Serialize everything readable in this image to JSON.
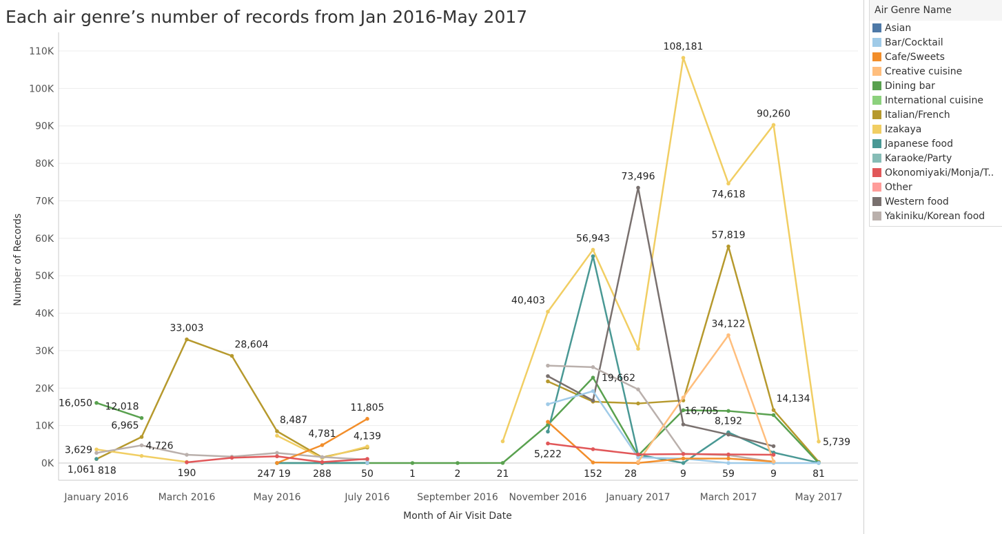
{
  "title": "Each air genre’s number of records from Jan 2016-May 2017",
  "legend": {
    "title": "Air Genre Name",
    "items": [
      {
        "label": "Asian",
        "color": "#4e79a7"
      },
      {
        "label": "Bar/Cocktail",
        "color": "#a0cbe8"
      },
      {
        "label": "Cafe/Sweets",
        "color": "#f28e2b"
      },
      {
        "label": "Creative cuisine",
        "color": "#ffbe7d"
      },
      {
        "label": "Dining bar",
        "color": "#59a14f"
      },
      {
        "label": "International cuisine",
        "color": "#8cd17d"
      },
      {
        "label": "Italian/French",
        "color": "#b6992d"
      },
      {
        "label": "Izakaya",
        "color": "#f1ce63"
      },
      {
        "label": "Japanese food",
        "color": "#499894"
      },
      {
        "label": "Karaoke/Party",
        "color": "#86bcb6"
      },
      {
        "label": "Okonomiyaki/Monja/T..",
        "color": "#e15759"
      },
      {
        "label": "Other",
        "color": "#ff9d9a"
      },
      {
        "label": "Western food",
        "color": "#79706e"
      },
      {
        "label": "Yakiniku/Korean food",
        "color": "#bab0ac"
      }
    ]
  },
  "chart_data": {
    "type": "line",
    "xlabel": "Month of Air Visit Date",
    "ylabel": "Number of Records",
    "ylim": [
      0,
      110000
    ],
    "yticks": [
      "0K",
      "10K",
      "20K",
      "30K",
      "40K",
      "50K",
      "60K",
      "70K",
      "80K",
      "90K",
      "100K",
      "110K"
    ],
    "categories": [
      "January 2016",
      "February 2016",
      "March 2016",
      "April 2016",
      "May 2016",
      "June 2016",
      "July 2016",
      "August 2016",
      "September 2016",
      "October 2016",
      "November 2016",
      "December 2016",
      "January 2017",
      "February 2017",
      "March 2017",
      "April 2017",
      "May 2017"
    ],
    "xtick_labels": [
      "January 2016",
      "",
      "March 2016",
      "",
      "May 2016",
      "",
      "July 2016",
      "",
      "September 2016",
      "",
      "November 2016",
      "",
      "January 2017",
      "",
      "March 2017",
      "",
      "May 2017"
    ],
    "grid": true,
    "legend_position": "right",
    "series": [
      {
        "name": "Italian/French",
        "color": "#b6992d",
        "values": [
          1061,
          6965,
          33003,
          28604,
          8487,
          1500,
          4139,
          null,
          null,
          null,
          21800,
          16400,
          15900,
          16705,
          57819,
          14134,
          300
        ]
      },
      {
        "name": "Izakaya",
        "color": "#f1ce63",
        "values": [
          3629,
          1900,
          300,
          null,
          7300,
          1300,
          4400,
          null,
          null,
          5800,
          40403,
          56943,
          30500,
          108181,
          74618,
          90260,
          5739
        ]
      },
      {
        "name": "Dining bar",
        "color": "#59a14f",
        "values": [
          16050,
          12018,
          null,
          null,
          0,
          0,
          0,
          1,
          2,
          21,
          10200,
          22800,
          2000,
          14100,
          13900,
          12800,
          0
        ]
      },
      {
        "name": "Japanese food",
        "color": "#499894",
        "values": [
          1100,
          null,
          null,
          null,
          0,
          0,
          50,
          null,
          null,
          null,
          8400,
          55200,
          2200,
          9,
          8192,
          2800,
          81
        ]
      },
      {
        "name": "Western food",
        "color": "#79706e",
        "values": [
          null,
          null,
          null,
          null,
          null,
          null,
          50,
          null,
          null,
          null,
          23200,
          16700,
          73496,
          10300,
          7600,
          4500,
          null
        ]
      },
      {
        "name": "Yakiniku/Korean food",
        "color": "#bab0ac",
        "values": [
          2700,
          4726,
          2200,
          1700,
          2700,
          1600,
          900,
          null,
          null,
          null,
          26000,
          25600,
          19662,
          2500,
          2100,
          300,
          null
        ]
      },
      {
        "name": "Bar/Cocktail",
        "color": "#a0cbe8",
        "values": [
          null,
          null,
          null,
          null,
          null,
          null,
          50,
          null,
          null,
          null,
          15700,
          19200,
          1500,
          1200,
          0,
          0,
          0
        ]
      },
      {
        "name": "Cafe/Sweets",
        "color": "#f28e2b",
        "values": [
          null,
          null,
          null,
          null,
          19,
          4781,
          11805,
          null,
          null,
          null,
          11000,
          152,
          28,
          1200,
          1200,
          400,
          null
        ]
      },
      {
        "name": "Creative cuisine",
        "color": "#ffbe7d",
        "values": [
          null,
          null,
          null,
          null,
          null,
          null,
          null,
          null,
          null,
          null,
          null,
          null,
          300,
          17500,
          34122,
          400,
          null
        ]
      },
      {
        "name": "Okonomiyaki/Monja/T..",
        "color": "#e15759",
        "values": [
          null,
          null,
          190,
          1400,
          1800,
          247,
          1100,
          null,
          null,
          null,
          5222,
          3700,
          2300,
          2400,
          2300,
          2200,
          null
        ]
      }
    ],
    "annotations": [
      {
        "text": "16,050",
        "x": "January 2016",
        "y": 16050,
        "pos": "left"
      },
      {
        "text": "12,018",
        "x": "February 2016",
        "y": 12018,
        "pos": "above-left"
      },
      {
        "text": "6,965",
        "x": "February 2016",
        "y": 6965,
        "pos": "above-left"
      },
      {
        "text": "3,629",
        "x": "January 2016",
        "y": 3629,
        "pos": "left"
      },
      {
        "text": "4,726",
        "x": "February 2016",
        "y": 4726,
        "pos": "right"
      },
      {
        "text": "1,061",
        "x": "January 2016",
        "y": 1061,
        "pos": "below-left"
      },
      {
        "text": "818",
        "x": "January 2016",
        "y": 818,
        "pos": "below-right"
      },
      {
        "text": "33,003",
        "x": "March 2016",
        "y": 33003,
        "pos": "above"
      },
      {
        "text": "190",
        "x": "March 2016",
        "y": 190,
        "pos": "below"
      },
      {
        "text": "28,604",
        "x": "April 2016",
        "y": 28604,
        "pos": "above-right"
      },
      {
        "text": "8,487",
        "x": "May 2016",
        "y": 8487,
        "pos": "above-right"
      },
      {
        "text": "247",
        "x": "May 2016",
        "y": 0,
        "pos": "below-left"
      },
      {
        "text": "19",
        "x": "May 2016",
        "y": 0,
        "pos": "below-right"
      },
      {
        "text": "4,781",
        "x": "June 2016",
        "y": 4781,
        "pos": "above"
      },
      {
        "text": "288",
        "x": "June 2016",
        "y": 0,
        "pos": "below"
      },
      {
        "text": "11,805",
        "x": "July 2016",
        "y": 11805,
        "pos": "above"
      },
      {
        "text": "4,139",
        "x": "July 2016",
        "y": 4139,
        "pos": "above"
      },
      {
        "text": "50",
        "x": "July 2016",
        "y": 0,
        "pos": "below"
      },
      {
        "text": "1",
        "x": "August 2016",
        "y": 0,
        "pos": "below"
      },
      {
        "text": "2",
        "x": "September 2016",
        "y": 0,
        "pos": "below"
      },
      {
        "text": "21",
        "x": "October 2016",
        "y": 0,
        "pos": "below"
      },
      {
        "text": "40,403",
        "x": "November 2016",
        "y": 40403,
        "pos": "above-left"
      },
      {
        "text": "5,222",
        "x": "November 2016",
        "y": 5222,
        "pos": "below"
      },
      {
        "text": "56,943",
        "x": "December 2016",
        "y": 56943,
        "pos": "above"
      },
      {
        "text": "152",
        "x": "December 2016",
        "y": 0,
        "pos": "below"
      },
      {
        "text": "19,662",
        "x": "January 2017",
        "y": 19662,
        "pos": "above-left"
      },
      {
        "text": "73,496",
        "x": "January 2017",
        "y": 73496,
        "pos": "above"
      },
      {
        "text": "28",
        "x": "January 2017",
        "y": 0,
        "pos": "below-left"
      },
      {
        "text": "108,181",
        "x": "February 2017",
        "y": 108181,
        "pos": "above"
      },
      {
        "text": "16,705",
        "x": "February 2017",
        "y": 16705,
        "pos": "below-right"
      },
      {
        "text": "9",
        "x": "February 2017",
        "y": 0,
        "pos": "below"
      },
      {
        "text": "74,618",
        "x": "March 2017",
        "y": 74618,
        "pos": "below"
      },
      {
        "text": "57,819",
        "x": "March 2017",
        "y": 57819,
        "pos": "above"
      },
      {
        "text": "34,122",
        "x": "March 2017",
        "y": 34122,
        "pos": "above"
      },
      {
        "text": "8,192",
        "x": "March 2017",
        "y": 8192,
        "pos": "above"
      },
      {
        "text": "59",
        "x": "March 2017",
        "y": 0,
        "pos": "below"
      },
      {
        "text": "90,260",
        "x": "April 2017",
        "y": 90260,
        "pos": "above"
      },
      {
        "text": "14,134",
        "x": "April 2017",
        "y": 14134,
        "pos": "above-right"
      },
      {
        "text": "9",
        "x": "April 2017",
        "y": 0,
        "pos": "below"
      },
      {
        "text": "5,739",
        "x": "May 2017",
        "y": 5739,
        "pos": "right"
      },
      {
        "text": "81",
        "x": "May 2017",
        "y": 0,
        "pos": "below"
      }
    ]
  }
}
